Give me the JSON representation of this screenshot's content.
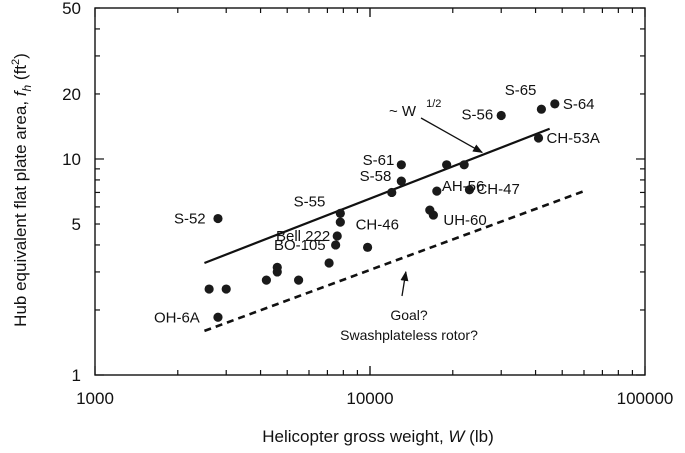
{
  "chart_data": {
    "type": "scatter",
    "xscale": "log",
    "yscale": "log",
    "xlim": [
      1000,
      100000
    ],
    "ylim": [
      1,
      50
    ],
    "grid": false,
    "xlabel": "Helicopter gross weight, W (lb)",
    "ylabel": "Hub equivalent flat plate area, f_h (ft^2)",
    "xticks": [
      "1000",
      "10000",
      "100000"
    ],
    "yticks": [
      "1",
      "5",
      "10",
      "20",
      "50"
    ],
    "points": [
      {
        "x": 2800,
        "y": 5.3,
        "label": "S-52"
      },
      {
        "x": 2800,
        "y": 1.85,
        "label": "OH-6A"
      },
      {
        "x": 2600,
        "y": 2.5,
        "label": ""
      },
      {
        "x": 3000,
        "y": 2.5,
        "label": ""
      },
      {
        "x": 4200,
        "y": 2.75,
        "label": ""
      },
      {
        "x": 4600,
        "y": 3.0,
        "label": ""
      },
      {
        "x": 4600,
        "y": 3.15,
        "label": ""
      },
      {
        "x": 5500,
        "y": 2.75,
        "label": ""
      },
      {
        "x": 7100,
        "y": 3.3,
        "label": ""
      },
      {
        "x": 7500,
        "y": 4.0,
        "label": "BO-105"
      },
      {
        "x": 7600,
        "y": 4.4,
        "label": "Bell 222"
      },
      {
        "x": 7800,
        "y": 5.1,
        "label": ""
      },
      {
        "x": 7800,
        "y": 5.6,
        "label": "S-55"
      },
      {
        "x": 9800,
        "y": 3.9,
        "label": "CH-46"
      },
      {
        "x": 12000,
        "y": 7.0,
        "label": ""
      },
      {
        "x": 13000,
        "y": 7.9,
        "label": "S-58"
      },
      {
        "x": 13000,
        "y": 9.4,
        "label": "S-61"
      },
      {
        "x": 16500,
        "y": 5.8,
        "label": ""
      },
      {
        "x": 17000,
        "y": 5.5,
        "label": "UH-60"
      },
      {
        "x": 17500,
        "y": 7.1,
        "label": "AH-56"
      },
      {
        "x": 19000,
        "y": 9.4,
        "label": ""
      },
      {
        "x": 22000,
        "y": 9.4,
        "label": ""
      },
      {
        "x": 23000,
        "y": 7.2,
        "label": "CH-47"
      },
      {
        "x": 30000,
        "y": 15.9,
        "label": "S-56"
      },
      {
        "x": 41000,
        "y": 12.5,
        "label": "CH-53A"
      },
      {
        "x": 42000,
        "y": 17.0,
        "label": "S-65"
      },
      {
        "x": 47000,
        "y": 18.0,
        "label": "S-64"
      }
    ],
    "lines": [
      {
        "label": "~ W 1/2",
        "style": "solid",
        "x": [
          2500,
          45000
        ],
        "y": [
          3.3,
          13.8
        ]
      },
      {
        "label": "Goal?",
        "style": "dashed",
        "x": [
          2500,
          60000
        ],
        "y": [
          1.6,
          7.1
        ]
      }
    ],
    "annotations": [
      {
        "text": "~ W",
        "superscript": "1/2",
        "points_to": {
          "x": 26000,
          "y": 10.5
        }
      },
      {
        "text": "Goal?",
        "points_to": {
          "x": 13500,
          "y": 3.2
        }
      },
      {
        "text": "Swashplateless rotor?"
      }
    ]
  }
}
